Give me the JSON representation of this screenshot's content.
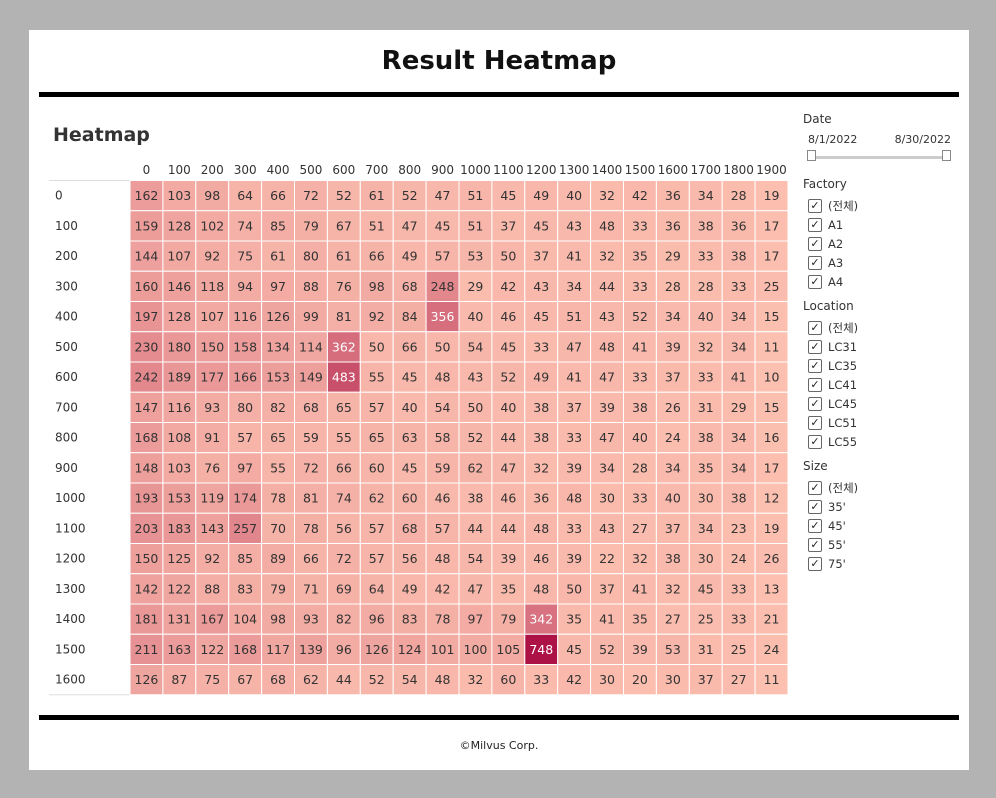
{
  "page_title": "Result Heatmap",
  "footer": "©Milvus Corp.",
  "sheet_title": "Heatmap",
  "filters": {
    "date": {
      "title": "Date",
      "from": "8/1/2022",
      "to": "8/30/2022"
    },
    "factory": {
      "title": "Factory",
      "options": [
        "(전체)",
        "A1",
        "A2",
        "A3",
        "A4"
      ]
    },
    "location": {
      "title": "Location",
      "options": [
        "(전체)",
        "LC31",
        "LC35",
        "LC41",
        "LC45",
        "LC51",
        "LC55"
      ]
    },
    "size": {
      "title": "Size",
      "options": [
        "(전체)",
        "35'",
        "45'",
        "55'",
        "75'"
      ]
    }
  },
  "chart_data": {
    "type": "heatmap",
    "title": "Heatmap",
    "x": [
      "0",
      "100",
      "200",
      "300",
      "400",
      "500",
      "600",
      "700",
      "800",
      "900",
      "1000",
      "1100",
      "1200",
      "1300",
      "1400",
      "1500",
      "1600",
      "1700",
      "1800",
      "1900"
    ],
    "y": [
      "0",
      "100",
      "200",
      "300",
      "400",
      "500",
      "600",
      "700",
      "800",
      "900",
      "1000",
      "1100",
      "1200",
      "1300",
      "1400",
      "1500",
      "1600"
    ],
    "values": [
      [
        162,
        103,
        98,
        64,
        66,
        72,
        52,
        61,
        52,
        47,
        51,
        45,
        49,
        40,
        32,
        42,
        36,
        34,
        28,
        19
      ],
      [
        159,
        128,
        102,
        74,
        85,
        79,
        67,
        51,
        47,
        45,
        51,
        37,
        45,
        43,
        48,
        33,
        36,
        38,
        36,
        17
      ],
      [
        144,
        107,
        92,
        75,
        61,
        80,
        61,
        66,
        49,
        57,
        53,
        50,
        37,
        41,
        32,
        35,
        29,
        33,
        38,
        17
      ],
      [
        160,
        146,
        118,
        94,
        97,
        88,
        76,
        98,
        68,
        248,
        29,
        42,
        43,
        34,
        44,
        33,
        28,
        28,
        33,
        25
      ],
      [
        197,
        128,
        107,
        116,
        126,
        99,
        81,
        92,
        84,
        356,
        40,
        46,
        45,
        51,
        43,
        52,
        34,
        40,
        34,
        15
      ],
      [
        230,
        180,
        150,
        158,
        134,
        114,
        362,
        50,
        66,
        50,
        54,
        45,
        33,
        47,
        48,
        41,
        39,
        32,
        34,
        11
      ],
      [
        242,
        189,
        177,
        166,
        153,
        149,
        483,
        55,
        45,
        48,
        43,
        52,
        49,
        41,
        47,
        33,
        37,
        33,
        41,
        10
      ],
      [
        147,
        116,
        93,
        80,
        82,
        68,
        65,
        57,
        40,
        54,
        50,
        40,
        38,
        37,
        39,
        38,
        26,
        31,
        29,
        15
      ],
      [
        168,
        108,
        91,
        57,
        65,
        59,
        55,
        65,
        63,
        58,
        52,
        44,
        38,
        33,
        47,
        40,
        24,
        38,
        34,
        16
      ],
      [
        148,
        103,
        76,
        97,
        55,
        72,
        66,
        60,
        45,
        59,
        62,
        47,
        32,
        39,
        34,
        28,
        34,
        35,
        34,
        17
      ],
      [
        193,
        153,
        119,
        174,
        78,
        81,
        74,
        62,
        60,
        46,
        38,
        46,
        36,
        48,
        30,
        33,
        40,
        30,
        38,
        12
      ],
      [
        203,
        183,
        143,
        257,
        70,
        78,
        56,
        57,
        68,
        57,
        44,
        44,
        48,
        33,
        43,
        27,
        37,
        34,
        23,
        19
      ],
      [
        150,
        125,
        92,
        85,
        89,
        66,
        72,
        57,
        56,
        48,
        54,
        39,
        46,
        39,
        22,
        32,
        38,
        30,
        24,
        26
      ],
      [
        142,
        122,
        88,
        83,
        79,
        71,
        69,
        64,
        49,
        42,
        47,
        35,
        48,
        50,
        37,
        41,
        32,
        45,
        33,
        13
      ],
      [
        181,
        131,
        167,
        104,
        98,
        93,
        82,
        96,
        83,
        78,
        97,
        79,
        342,
        35,
        41,
        35,
        27,
        25,
        33,
        21
      ],
      [
        211,
        163,
        122,
        168,
        117,
        139,
        96,
        126,
        124,
        101,
        100,
        105,
        748,
        45,
        52,
        39,
        53,
        31,
        25,
        24
      ],
      [
        126,
        87,
        75,
        67,
        68,
        62,
        44,
        52,
        54,
        48,
        32,
        60,
        33,
        42,
        30,
        20,
        30,
        37,
        27,
        11
      ]
    ],
    "color_low": "#fcc0b0",
    "color_high": "#ac1245",
    "vmin": 10,
    "vmax": 748
  }
}
